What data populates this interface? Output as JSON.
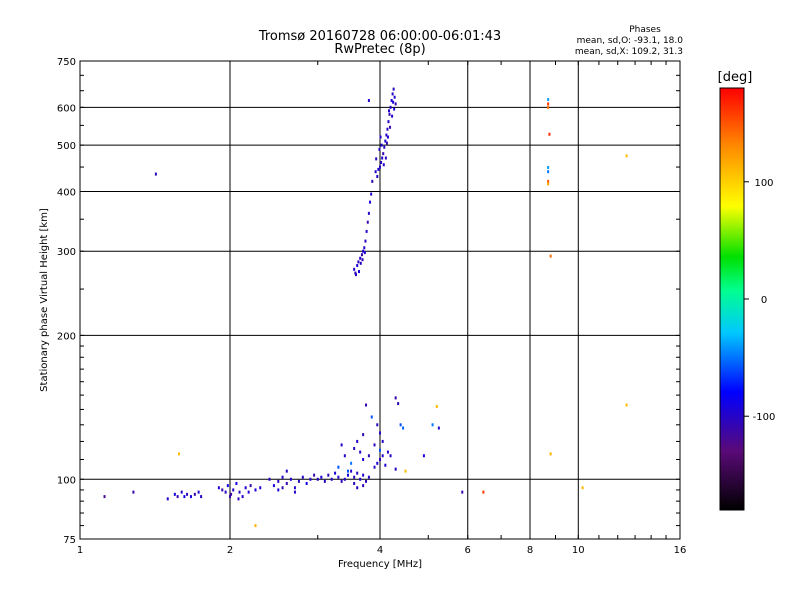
{
  "chart_data": {
    "type": "scatter",
    "title": "Tromsø 20160728 06:00:00-06:01:43",
    "subtitle": "RwPretec (8p)",
    "legend_title": "Phases",
    "legend_line1": "mean, sd,O: -93.1, 18.0",
    "legend_line2": "mean, sd,X: 109.2, 31.3",
    "xlabel": "Frequency [MHz]",
    "ylabel": "Stationary phase Virtual Height [km]",
    "xscale": "log",
    "yscale": "log",
    "xlim": [
      1,
      16
    ],
    "ylim": [
      75,
      750
    ],
    "xticks": [
      1,
      2,
      4,
      6,
      8,
      10,
      16
    ],
    "yticks": [
      75,
      100,
      200,
      300,
      400,
      500,
      600,
      750
    ],
    "grid": true,
    "colorbar": {
      "label": "[deg]",
      "range": [
        -180,
        180
      ],
      "ticks": [
        100,
        0,
        -100
      ],
      "colormap": "rainbow"
    },
    "point_color_scale": "phase in degrees",
    "points": [
      {
        "f": 1.12,
        "h": 92,
        "p": -120
      },
      {
        "f": 1.28,
        "h": 94,
        "p": -110
      },
      {
        "f": 1.42,
        "h": 435,
        "p": -105
      },
      {
        "f": 1.5,
        "h": 91,
        "p": -100
      },
      {
        "f": 1.55,
        "h": 93,
        "p": -95
      },
      {
        "f": 1.57,
        "h": 92,
        "p": -110
      },
      {
        "f": 1.6,
        "h": 94,
        "p": -100
      },
      {
        "f": 1.62,
        "h": 92,
        "p": -90
      },
      {
        "f": 1.64,
        "h": 93,
        "p": -105
      },
      {
        "f": 1.67,
        "h": 92,
        "p": -95
      },
      {
        "f": 1.7,
        "h": 93,
        "p": -110
      },
      {
        "f": 1.73,
        "h": 94,
        "p": -100
      },
      {
        "f": 1.75,
        "h": 92,
        "p": -100
      },
      {
        "f": 1.58,
        "h": 113,
        "p": 110
      },
      {
        "f": 1.9,
        "h": 96,
        "p": -95
      },
      {
        "f": 1.93,
        "h": 95,
        "p": -110
      },
      {
        "f": 1.96,
        "h": 94,
        "p": -100
      },
      {
        "f": 1.98,
        "h": 97,
        "p": -90
      },
      {
        "f": 2.01,
        "h": 93,
        "p": -115
      },
      {
        "f": 2.03,
        "h": 95,
        "p": -100
      },
      {
        "f": 2.06,
        "h": 98,
        "p": -90
      },
      {
        "f": 2.09,
        "h": 94,
        "p": -105
      },
      {
        "f": 2.12,
        "h": 92,
        "p": -95
      },
      {
        "f": 2.15,
        "h": 96,
        "p": -100
      },
      {
        "f": 2.2,
        "h": 97,
        "p": -110
      },
      {
        "f": 2.25,
        "h": 95,
        "p": -95
      },
      {
        "f": 2.3,
        "h": 96,
        "p": -100
      },
      {
        "f": 2.25,
        "h": 80,
        "p": 115
      },
      {
        "f": 2.0,
        "h": 92,
        "p": -110
      },
      {
        "f": 2.08,
        "h": 91,
        "p": -105
      },
      {
        "f": 2.18,
        "h": 94,
        "p": -100
      },
      {
        "f": 2.4,
        "h": 100,
        "p": -100
      },
      {
        "f": 2.45,
        "h": 97,
        "p": -95
      },
      {
        "f": 2.5,
        "h": 99,
        "p": -105
      },
      {
        "f": 2.55,
        "h": 101,
        "p": -100
      },
      {
        "f": 2.6,
        "h": 98,
        "p": -110
      },
      {
        "f": 2.65,
        "h": 100,
        "p": -95
      },
      {
        "f": 2.7,
        "h": 96,
        "p": -100
      },
      {
        "f": 2.75,
        "h": 99,
        "p": -105
      },
      {
        "f": 2.8,
        "h": 101,
        "p": -100
      },
      {
        "f": 2.85,
        "h": 98,
        "p": -90
      },
      {
        "f": 2.9,
        "h": 100,
        "p": -100
      },
      {
        "f": 2.95,
        "h": 102,
        "p": -110
      },
      {
        "f": 3.0,
        "h": 100,
        "p": -100
      },
      {
        "f": 3.05,
        "h": 101,
        "p": -95
      },
      {
        "f": 3.1,
        "h": 99,
        "p": -100
      },
      {
        "f": 3.15,
        "h": 102,
        "p": -105
      },
      {
        "f": 3.2,
        "h": 100,
        "p": -100
      },
      {
        "f": 3.25,
        "h": 103,
        "p": -95
      },
      {
        "f": 3.3,
        "h": 101,
        "p": -100
      },
      {
        "f": 3.35,
        "h": 99,
        "p": -105
      },
      {
        "f": 2.6,
        "h": 104,
        "p": -100
      },
      {
        "f": 2.55,
        "h": 96,
        "p": -110
      },
      {
        "f": 2.7,
        "h": 94,
        "p": -100
      },
      {
        "f": 2.5,
        "h": 95,
        "p": -95
      },
      {
        "f": 3.4,
        "h": 100,
        "p": -100
      },
      {
        "f": 3.45,
        "h": 102,
        "p": -95
      },
      {
        "f": 3.5,
        "h": 104,
        "p": -100
      },
      {
        "f": 3.55,
        "h": 101,
        "p": -105
      },
      {
        "f": 3.6,
        "h": 103,
        "p": -100
      },
      {
        "f": 3.65,
        "h": 100,
        "p": -95
      },
      {
        "f": 3.7,
        "h": 102,
        "p": -100
      },
      {
        "f": 3.75,
        "h": 99,
        "p": -105
      },
      {
        "f": 3.8,
        "h": 101,
        "p": -100
      },
      {
        "f": 3.3,
        "h": 106,
        "p": -60
      },
      {
        "f": 3.5,
        "h": 108,
        "p": -50
      },
      {
        "f": 3.45,
        "h": 104,
        "p": -60
      },
      {
        "f": 3.6,
        "h": 96,
        "p": -100
      },
      {
        "f": 3.7,
        "h": 97,
        "p": -110
      },
      {
        "f": 3.55,
        "h": 98,
        "p": -105
      },
      {
        "f": 3.4,
        "h": 112,
        "p": -100
      },
      {
        "f": 3.55,
        "h": 116,
        "p": -105
      },
      {
        "f": 3.65,
        "h": 114,
        "p": -100
      },
      {
        "f": 3.7,
        "h": 110,
        "p": -95
      },
      {
        "f": 3.8,
        "h": 112,
        "p": -105
      },
      {
        "f": 3.35,
        "h": 118,
        "p": -100
      },
      {
        "f": 3.6,
        "h": 120,
        "p": -100
      },
      {
        "f": 3.7,
        "h": 124,
        "p": -105
      },
      {
        "f": 3.75,
        "h": 143,
        "p": -110
      },
      {
        "f": 3.9,
        "h": 106,
        "p": -100
      },
      {
        "f": 3.95,
        "h": 108,
        "p": -95
      },
      {
        "f": 4.0,
        "h": 110,
        "p": -105
      },
      {
        "f": 4.05,
        "h": 112,
        "p": -100
      },
      {
        "f": 4.1,
        "h": 107,
        "p": -95
      },
      {
        "f": 4.15,
        "h": 114,
        "p": -100
      },
      {
        "f": 3.9,
        "h": 118,
        "p": -105
      },
      {
        "f": 4.0,
        "h": 125,
        "p": -100
      },
      {
        "f": 3.95,
        "h": 130,
        "p": -105
      },
      {
        "f": 4.05,
        "h": 120,
        "p": -100
      },
      {
        "f": 4.0,
        "h": 115,
        "p": -60
      },
      {
        "f": 4.4,
        "h": 130,
        "p": -60
      },
      {
        "f": 4.45,
        "h": 128,
        "p": -55
      },
      {
        "f": 4.3,
        "h": 148,
        "p": -110
      },
      {
        "f": 4.35,
        "h": 144,
        "p": -105
      },
      {
        "f": 3.85,
        "h": 135,
        "p": -60
      },
      {
        "f": 4.2,
        "h": 112,
        "p": -100
      },
      {
        "f": 4.3,
        "h": 105,
        "p": -100
      },
      {
        "f": 4.5,
        "h": 104,
        "p": 110
      },
      {
        "f": 5.2,
        "h": 142,
        "p": 110
      },
      {
        "f": 5.1,
        "h": 130,
        "p": -50
      },
      {
        "f": 5.25,
        "h": 128,
        "p": -100
      },
      {
        "f": 4.9,
        "h": 112,
        "p": -90
      },
      {
        "f": 5.85,
        "h": 94,
        "p": -110
      },
      {
        "f": 6.45,
        "h": 94,
        "p": 160
      },
      {
        "f": 3.55,
        "h": 275,
        "p": -100
      },
      {
        "f": 3.57,
        "h": 270,
        "p": -110
      },
      {
        "f": 3.6,
        "h": 280,
        "p": -95
      },
      {
        "f": 3.62,
        "h": 285,
        "p": -105
      },
      {
        "f": 3.65,
        "h": 290,
        "p": -100
      },
      {
        "f": 3.68,
        "h": 295,
        "p": -110
      },
      {
        "f": 3.7,
        "h": 300,
        "p": -95
      },
      {
        "f": 3.72,
        "h": 305,
        "p": -100
      },
      {
        "f": 3.74,
        "h": 315,
        "p": -105
      },
      {
        "f": 3.76,
        "h": 330,
        "p": -100
      },
      {
        "f": 3.78,
        "h": 345,
        "p": -110
      },
      {
        "f": 3.8,
        "h": 360,
        "p": -100
      },
      {
        "f": 3.82,
        "h": 380,
        "p": -95
      },
      {
        "f": 3.84,
        "h": 395,
        "p": -100
      },
      {
        "f": 3.86,
        "h": 420,
        "p": -105
      },
      {
        "f": 3.58,
        "h": 268,
        "p": -100
      },
      {
        "f": 3.63,
        "h": 272,
        "p": -95
      },
      {
        "f": 3.66,
        "h": 283,
        "p": -100
      },
      {
        "f": 3.69,
        "h": 288,
        "p": -110
      },
      {
        "f": 3.73,
        "h": 298,
        "p": -100
      },
      {
        "f": 3.95,
        "h": 430,
        "p": -100
      },
      {
        "f": 3.97,
        "h": 445,
        "p": -95
      },
      {
        "f": 4.0,
        "h": 450,
        "p": -100
      },
      {
        "f": 4.02,
        "h": 460,
        "p": -105
      },
      {
        "f": 4.04,
        "h": 470,
        "p": -100
      },
      {
        "f": 4.06,
        "h": 480,
        "p": -110
      },
      {
        "f": 4.08,
        "h": 495,
        "p": -100
      },
      {
        "f": 4.1,
        "h": 510,
        "p": -95
      },
      {
        "f": 4.12,
        "h": 525,
        "p": -100
      },
      {
        "f": 4.14,
        "h": 540,
        "p": -105
      },
      {
        "f": 4.16,
        "h": 560,
        "p": -100
      },
      {
        "f": 4.18,
        "h": 580,
        "p": -110
      },
      {
        "f": 4.2,
        "h": 600,
        "p": -100
      },
      {
        "f": 4.22,
        "h": 620,
        "p": -95
      },
      {
        "f": 4.24,
        "h": 640,
        "p": -100
      },
      {
        "f": 4.26,
        "h": 655,
        "p": -105
      },
      {
        "f": 4.28,
        "h": 630,
        "p": -100
      },
      {
        "f": 4.3,
        "h": 610,
        "p": -110
      },
      {
        "f": 3.99,
        "h": 490,
        "p": -100
      },
      {
        "f": 4.03,
        "h": 500,
        "p": -95
      },
      {
        "f": 4.07,
        "h": 455,
        "p": -100
      },
      {
        "f": 4.11,
        "h": 470,
        "p": -105
      },
      {
        "f": 4.15,
        "h": 520,
        "p": -100
      },
      {
        "f": 4.19,
        "h": 545,
        "p": -110
      },
      {
        "f": 4.23,
        "h": 575,
        "p": -100
      },
      {
        "f": 4.27,
        "h": 595,
        "p": -95
      },
      {
        "f": 3.8,
        "h": 620,
        "p": -100
      },
      {
        "f": 3.92,
        "h": 440,
        "p": -100
      },
      {
        "f": 3.93,
        "h": 468,
        "p": -105
      },
      {
        "f": 4.01,
        "h": 520,
        "p": -100
      },
      {
        "f": 4.13,
        "h": 505,
        "p": -110
      },
      {
        "f": 4.17,
        "h": 590,
        "p": -100
      },
      {
        "f": 4.25,
        "h": 615,
        "p": -95
      },
      {
        "f": 8.7,
        "h": 623,
        "p": -40
      },
      {
        "f": 8.7,
        "h": 610,
        "p": 160
      },
      {
        "f": 8.7,
        "h": 600,
        "p": 140
      },
      {
        "f": 8.75,
        "h": 527,
        "p": 165
      },
      {
        "f": 8.7,
        "h": 449,
        "p": -40
      },
      {
        "f": 8.7,
        "h": 440,
        "p": -50
      },
      {
        "f": 8.7,
        "h": 420,
        "p": 150
      },
      {
        "f": 8.7,
        "h": 415,
        "p": 120
      },
      {
        "f": 8.8,
        "h": 293,
        "p": 140
      },
      {
        "f": 8.8,
        "h": 113,
        "p": 115
      },
      {
        "f": 10.2,
        "h": 96,
        "p": 110
      },
      {
        "f": 12.5,
        "h": 475,
        "p": 110
      },
      {
        "f": 12.5,
        "h": 143,
        "p": 110
      }
    ]
  }
}
